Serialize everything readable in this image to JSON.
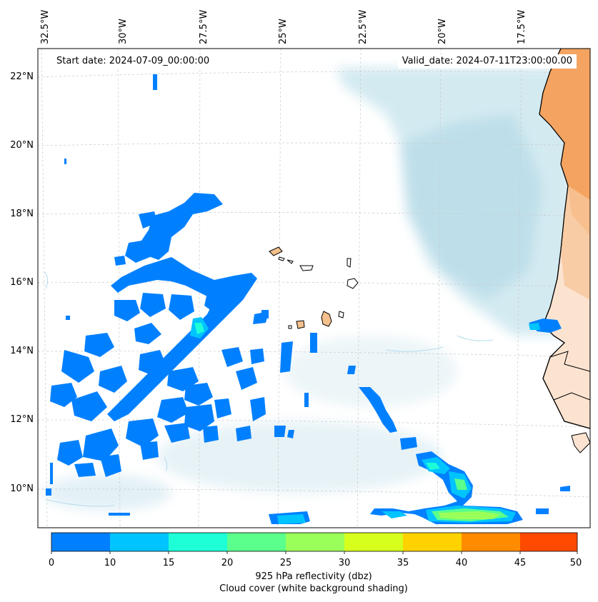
{
  "header": {
    "start_date": "Start date: 2024-07-09_00:00:00",
    "valid_date": "Valid_date: 2024-07-11T23:00:00.00"
  },
  "map": {
    "lon_labels": [
      "32.5°W",
      "30°W",
      "27.5°W",
      "25°W",
      "22.5°W",
      "20°W",
      "17.5°W"
    ],
    "lat_labels": [
      "22°N",
      "20°N",
      "18°N",
      "16°N",
      "14°N",
      "12°N",
      "10°N"
    ],
    "colors": {
      "land": "#f4a460",
      "land_light": "#fbd9c0",
      "cloud": "#cfe8f0",
      "coast": "#000000"
    }
  },
  "colorbar": {
    "ticks": [
      "0",
      "10",
      "15",
      "20",
      "25",
      "30",
      "35",
      "40",
      "45",
      "50"
    ],
    "colors": [
      "#0080ff",
      "#00c4ff",
      "#1effd8",
      "#5aff8c",
      "#9bff59",
      "#d6ff1e",
      "#ffd200",
      "#ff8c00",
      "#ff4a00"
    ],
    "label_line1": "925 hPa reflectivity (dbz)",
    "label_line2": "Cloud cover (white background shading)"
  }
}
